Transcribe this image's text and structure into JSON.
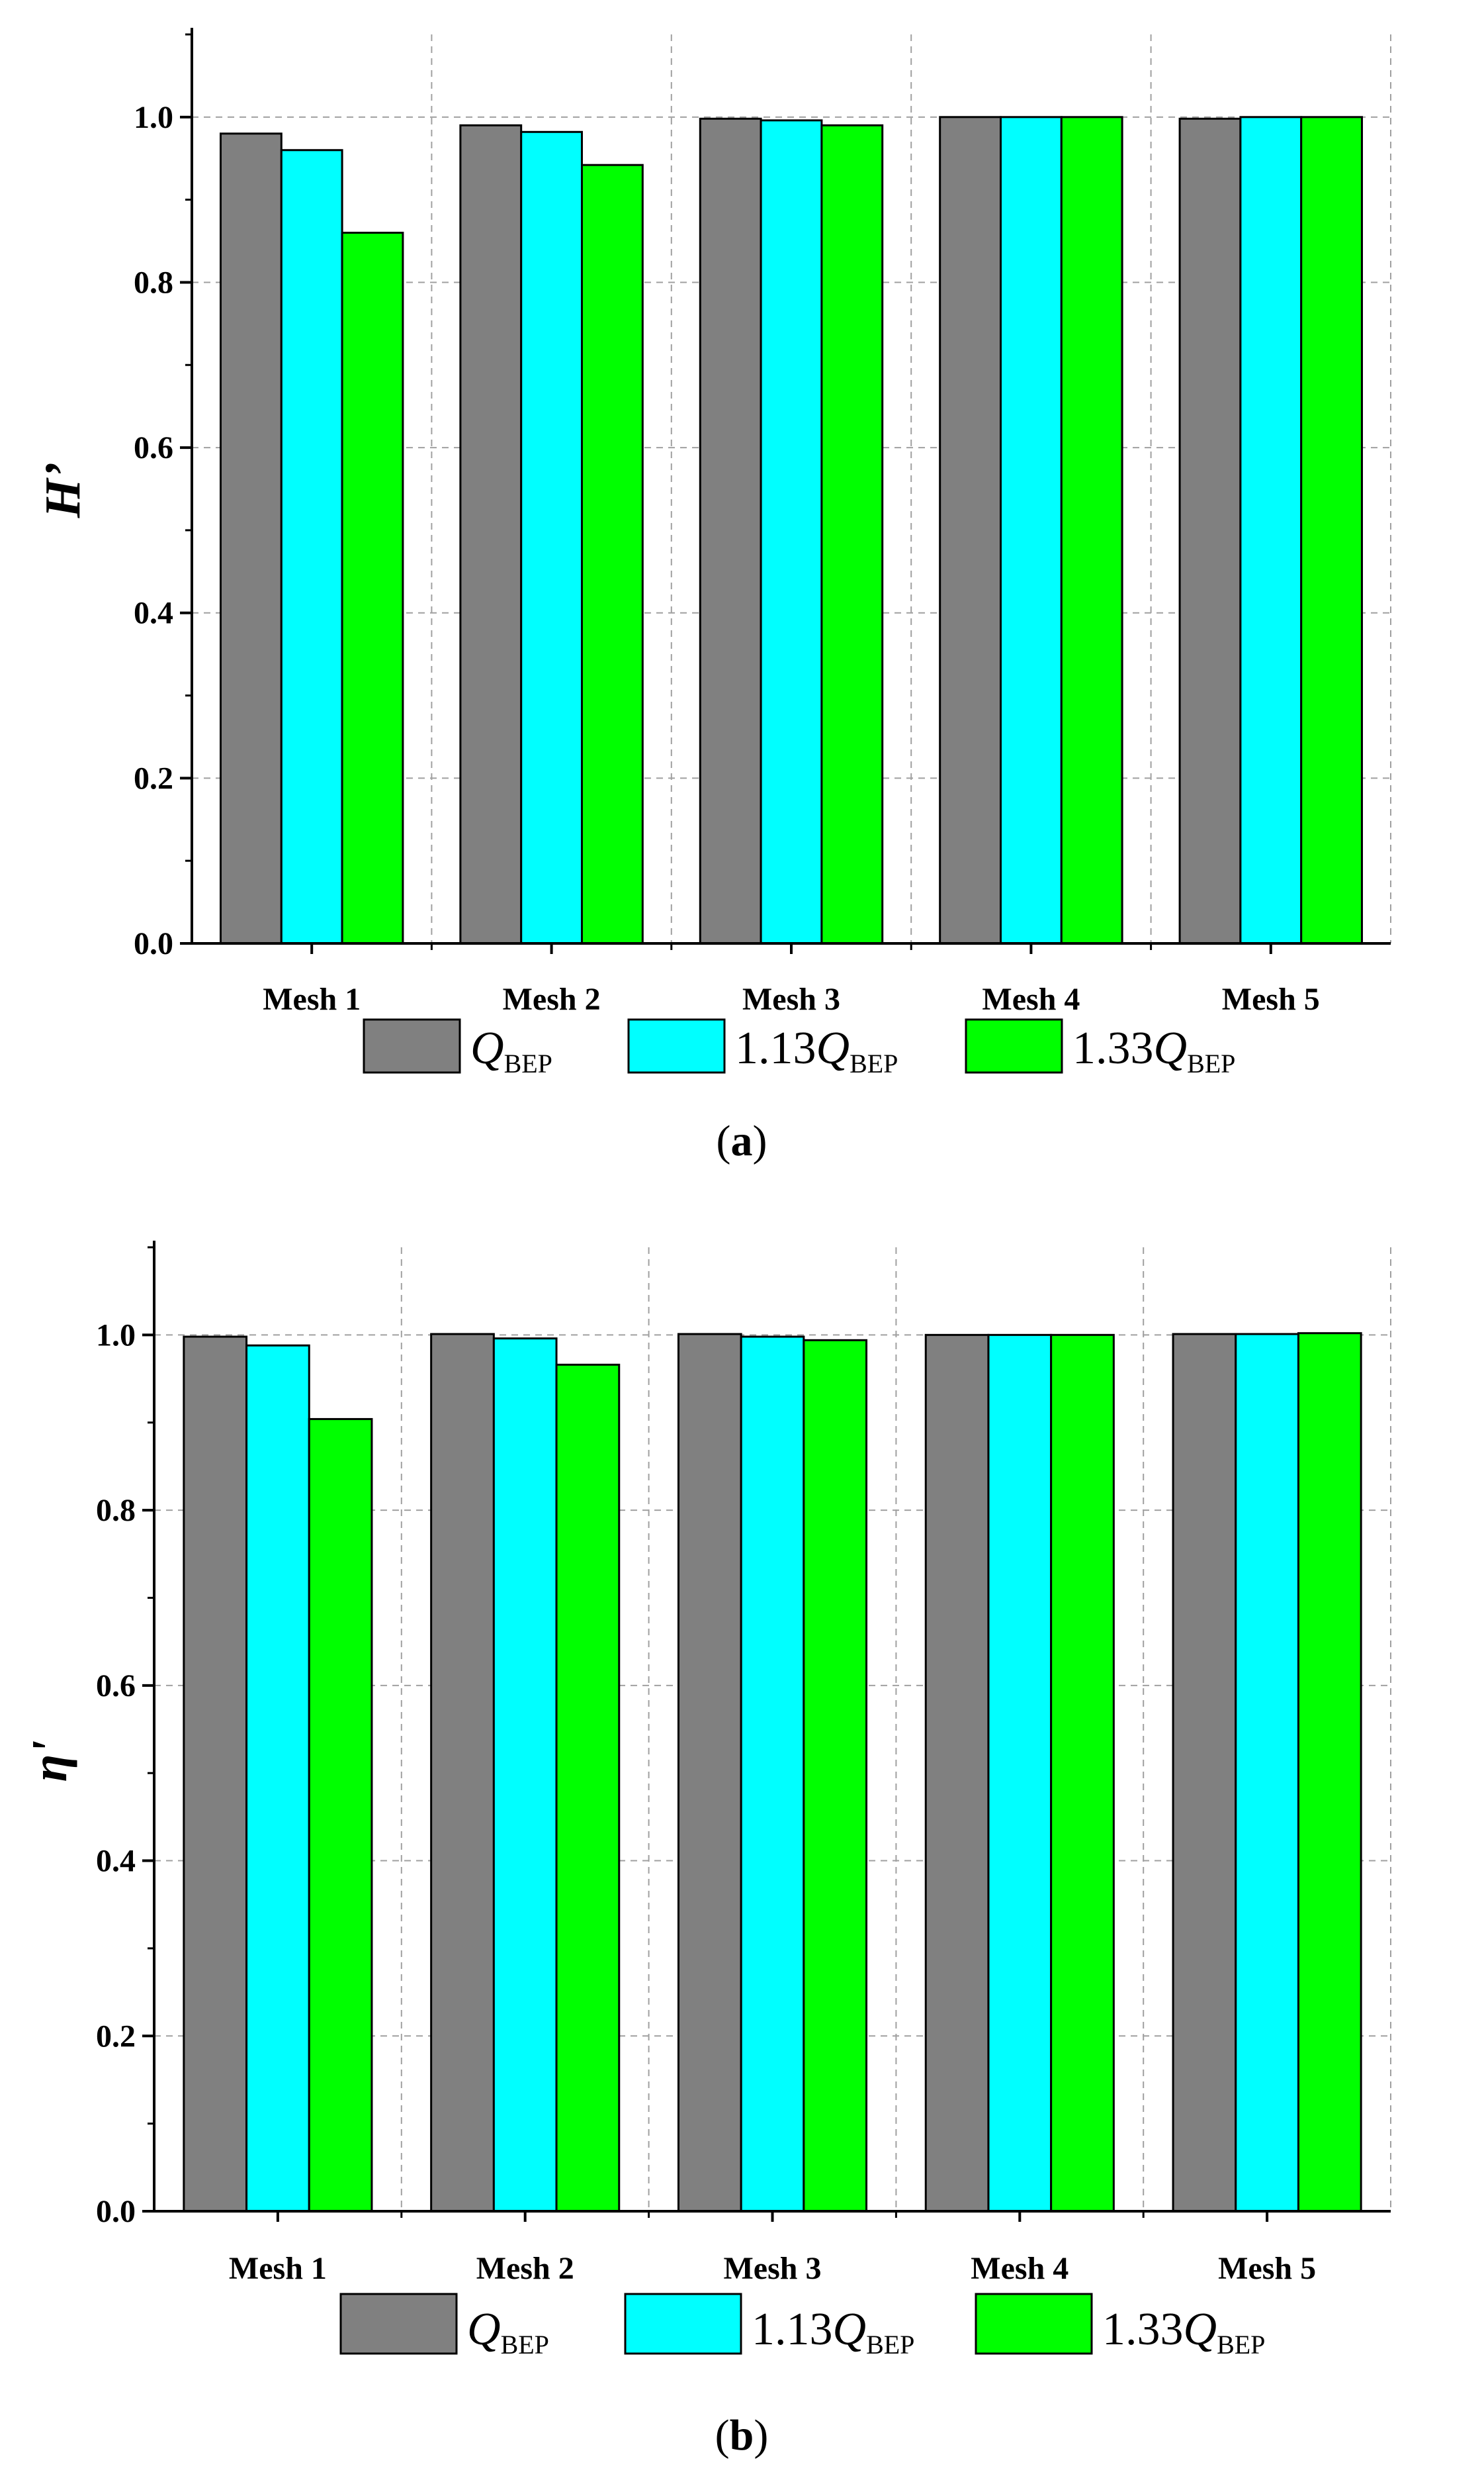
{
  "figure": {
    "panels": [
      {
        "id": "a",
        "caption_open": "(",
        "caption_letter": "a",
        "caption_close": ")"
      },
      {
        "id": "b",
        "caption_open": "(",
        "caption_letter": "b",
        "caption_close": ")"
      }
    ]
  },
  "colors": {
    "Q_BEP": "#808080",
    "1.13Q_BEP": "#00FFFF",
    "1.33Q_BEP": "#00FF00",
    "grid": "#a0a0a0",
    "axis": "#000000"
  },
  "legend": [
    {
      "prefix": "",
      "symbol": "Q",
      "subscript": "BEP",
      "color_key": "Q_BEP"
    },
    {
      "prefix": "1.13",
      "symbol": "Q",
      "subscript": "BEP",
      "color_key": "1.13Q_BEP"
    },
    {
      "prefix": "1.33",
      "symbol": "Q",
      "subscript": "BEP",
      "color_key": "1.33Q_BEP"
    }
  ],
  "chart_data": [
    {
      "type": "bar",
      "title": "",
      "xlabel": "",
      "ylabel": "H’",
      "ylim": [
        0,
        1.1
      ],
      "yticks": [
        "0.0",
        "0.2",
        "0.4",
        "0.6",
        "0.8",
        "1.0"
      ],
      "categories": [
        "Mesh 1",
        "Mesh 2",
        "Mesh 3",
        "Mesh 4",
        "Mesh 5"
      ],
      "grid": true,
      "legend_position": "bottom-center",
      "series": [
        {
          "name": "Q_BEP",
          "values": [
            0.98,
            0.99,
            0.998,
            1.0,
            0.998
          ]
        },
        {
          "name": "1.13Q_BEP",
          "values": [
            0.96,
            0.982,
            0.996,
            1.0,
            1.0
          ]
        },
        {
          "name": "1.33Q_BEP",
          "values": [
            0.86,
            0.942,
            0.99,
            1.0,
            1.0
          ]
        }
      ]
    },
    {
      "type": "bar",
      "title": "",
      "xlabel": "",
      "ylabel": "η'",
      "ylim": [
        0,
        1.1
      ],
      "yticks": [
        "0.0",
        "0.2",
        "0.4",
        "0.6",
        "0.8",
        "1.0"
      ],
      "categories": [
        "Mesh 1",
        "Mesh 2",
        "Mesh 3",
        "Mesh 4",
        "Mesh 5"
      ],
      "grid": true,
      "legend_position": "bottom-center",
      "series": [
        {
          "name": "Q_BEP",
          "values": [
            0.998,
            1.001,
            1.001,
            1.0,
            1.001
          ]
        },
        {
          "name": "1.13Q_BEP",
          "values": [
            0.988,
            0.996,
            0.998,
            1.0,
            1.001
          ]
        },
        {
          "name": "1.33Q_BEP",
          "values": [
            0.904,
            0.966,
            0.994,
            1.0,
            1.002
          ]
        }
      ]
    }
  ]
}
